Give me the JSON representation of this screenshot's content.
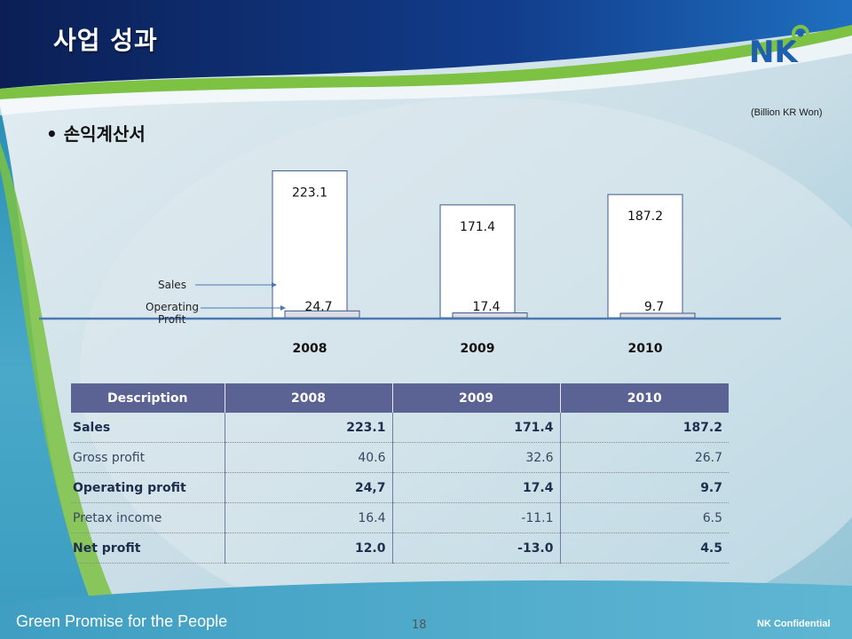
{
  "header": {
    "title": "사업 성과",
    "logo_text": "NK"
  },
  "unit_note": "(Billion KR Won)",
  "section": {
    "bullet": "• 손익계산서"
  },
  "chart_data": {
    "type": "bar",
    "categories": [
      "2008",
      "2009",
      "2010"
    ],
    "series": [
      {
        "name": "Sales",
        "values": [
          223.1,
          171.4,
          187.2
        ],
        "labels": [
          "223.1",
          "171.4",
          "187.2"
        ]
      },
      {
        "name": "Operating Profit",
        "values": [
          24.7,
          17.4,
          9.7
        ],
        "labels": [
          "24.7",
          "17.4",
          "9.7"
        ]
      }
    ],
    "legend_labels": {
      "sales": "Sales",
      "operating_profit": "Operating Profit"
    },
    "title": "",
    "xlabel": "",
    "ylabel": "",
    "ylim": [
      0,
      240
    ],
    "grid": false,
    "colors": {
      "sales": "#ffffff",
      "operating_profit": "#dcdce3",
      "border": "#3c5a8c",
      "baseline": "#4a78b4"
    }
  },
  "table": {
    "headers": [
      "Description",
      "2008",
      "2009",
      "2010"
    ],
    "rows": [
      {
        "label": "Sales",
        "values": [
          "223.1",
          "171.4",
          "187.2"
        ],
        "bold": true
      },
      {
        "label": "Gross profit",
        "values": [
          "40.6",
          "32.6",
          "26.7"
        ],
        "bold": false
      },
      {
        "label": "Operating profit",
        "values": [
          "24,7",
          "17.4",
          "9.7"
        ],
        "bold": true
      },
      {
        "label": "Pretax income",
        "values": [
          "16.4",
          "-11.1",
          "6.5"
        ],
        "bold": false
      },
      {
        "label": "Net profit",
        "values": [
          "12.0",
          "-13.0",
          "4.5"
        ],
        "bold": true
      }
    ]
  },
  "footer": {
    "slogan": "Green Promise for the People",
    "page_number": "18",
    "confidential": "NK Confidential"
  },
  "theme": {
    "header_navy": "#0d2a6e",
    "header_blue": "#1b63b5",
    "accent_green": "#7dc243",
    "table_header": "#5b6294"
  }
}
